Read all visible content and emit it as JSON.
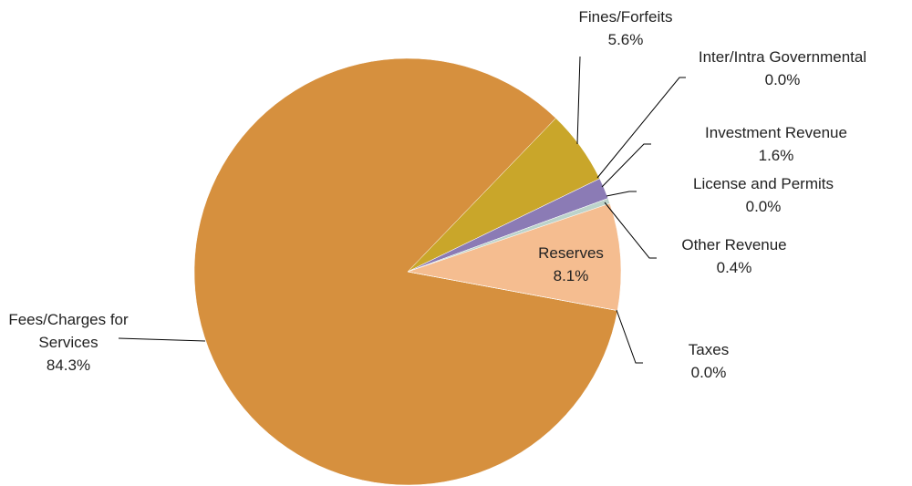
{
  "chart_data": {
    "type": "pie",
    "categories": [
      "Fees/Charges for Services",
      "Fines/Forfeits",
      "Inter/Intra Governmental",
      "Investment Revenue",
      "License and Permits",
      "Other Revenue",
      "Reserves",
      "Taxes"
    ],
    "values": [
      84.3,
      5.6,
      0.0,
      1.6,
      0.0,
      0.4,
      8.1,
      0.0
    ],
    "value_labels": [
      "84.3%",
      "5.6%",
      "0.0%",
      "1.6%",
      "0.0%",
      "0.4%",
      "8.1%",
      "0.0%"
    ],
    "colors": [
      "#d6903e",
      "#c9a62a",
      "#4f81bd",
      "#8b7bb5",
      "#a6c4bc",
      "#bcd3cb",
      "#f5bd90",
      "#c0c0c0"
    ],
    "start_angle": 100.5
  }
}
